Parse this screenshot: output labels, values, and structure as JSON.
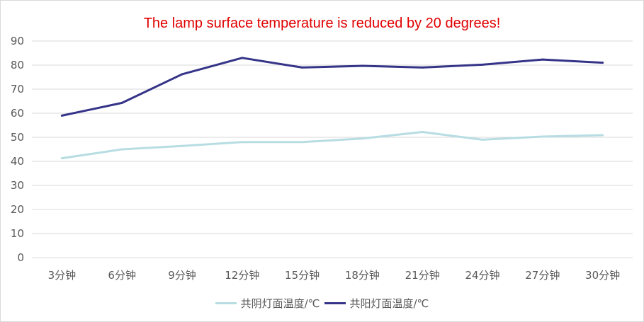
{
  "chart_data": {
    "type": "line",
    "title": "The lamp surface temperature is reduced by 20 degrees!",
    "title_color": "#e00000",
    "categories": [
      "3分钟",
      "6分钟",
      "9分钟",
      "12分钟",
      "15分钟",
      "18分钟",
      "21分钟",
      "24分钟",
      "27分钟",
      "30分钟"
    ],
    "series": [
      {
        "name": "共阴灯面温度/℃",
        "color": "#b7dde3",
        "values": [
          41.3,
          45,
          46.4,
          48,
          48,
          49.5,
          52.2,
          49,
          50.3,
          50.9
        ]
      },
      {
        "name": "共阳灯面温度/℃",
        "color": "#353488",
        "values": [
          59,
          64.3,
          76.2,
          83,
          79,
          79.7,
          79,
          80.2,
          82.3,
          81
        ]
      }
    ],
    "ylim": [
      0,
      90
    ],
    "yticks": [
      0,
      10,
      20,
      30,
      40,
      50,
      60,
      70,
      80,
      90
    ],
    "grid": true,
    "legend_position": "bottom"
  }
}
